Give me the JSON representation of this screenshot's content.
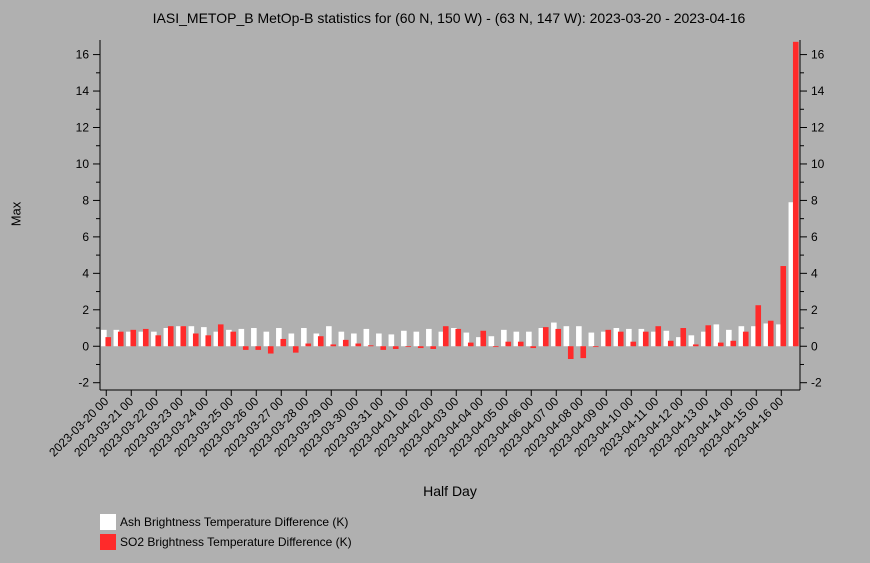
{
  "chart_data": {
    "type": "bar",
    "title": "IASI_METOP_B MetOp-B statistics for (60 N, 150 W) - (63 N, 147 W): 2023-03-20 - 2023-04-16",
    "xlabel": "Half Day",
    "ylabel": "Max",
    "ylim": [
      -2.4,
      16.8
    ],
    "yticks": [
      -2,
      0,
      2,
      4,
      6,
      8,
      10,
      12,
      14,
      16
    ],
    "grid": false,
    "legend_position": "bottom-left",
    "categories": [
      "2023-03-20 00",
      "2023-03-20 12",
      "2023-03-21 00",
      "2023-03-21 12",
      "2023-03-22 00",
      "2023-03-22 12",
      "2023-03-23 00",
      "2023-03-23 12",
      "2023-03-24 00",
      "2023-03-24 12",
      "2023-03-25 00",
      "2023-03-25 12",
      "2023-03-26 00",
      "2023-03-26 12",
      "2023-03-27 00",
      "2023-03-27 12",
      "2023-03-28 00",
      "2023-03-28 12",
      "2023-03-29 00",
      "2023-03-29 12",
      "2023-03-30 00",
      "2023-03-30 12",
      "2023-03-31 00",
      "2023-03-31 12",
      "2023-04-01 00",
      "2023-04-01 12",
      "2023-04-02 00",
      "2023-04-02 12",
      "2023-04-03 00",
      "2023-04-03 12",
      "2023-04-04 00",
      "2023-04-04 12",
      "2023-04-05 00",
      "2023-04-05 12",
      "2023-04-06 00",
      "2023-04-06 12",
      "2023-04-07 00",
      "2023-04-07 12",
      "2023-04-08 00",
      "2023-04-08 12",
      "2023-04-09 00",
      "2023-04-09 12",
      "2023-04-10 00",
      "2023-04-10 12",
      "2023-04-11 00",
      "2023-04-11 12",
      "2023-04-12 00",
      "2023-04-12 12",
      "2023-04-13 00",
      "2023-04-13 12",
      "2023-04-14 00",
      "2023-04-14 12",
      "2023-04-15 00",
      "2023-04-15 12",
      "2023-04-16 00",
      "2023-04-16 12"
    ],
    "tick_labels": [
      "2023-03-20 00",
      "2023-03-21 00",
      "2023-03-22 00",
      "2023-03-23 00",
      "2023-03-24 00",
      "2023-03-25 00",
      "2023-03-26 00",
      "2023-03-27 00",
      "2023-03-28 00",
      "2023-03-29 00",
      "2023-03-30 00",
      "2023-03-31 00",
      "2023-04-01 00",
      "2023-04-02 00",
      "2023-04-03 00",
      "2023-04-04 00",
      "2023-04-05 00",
      "2023-04-06 00",
      "2023-04-07 00",
      "2023-04-08 00",
      "2023-04-09 00",
      "2023-04-10 00",
      "2023-04-11 00",
      "2023-04-12 00",
      "2023-04-13 00",
      "2023-04-14 00",
      "2023-04-15 00",
      "2023-04-16 00"
    ],
    "series": [
      {
        "name": "Ash Brightness Temperature Difference (K)",
        "color": "#ffffff",
        "values": [
          0.9,
          0.9,
          0.8,
          0.8,
          0.8,
          1.0,
          1.1,
          1.1,
          1.05,
          0.8,
          0.9,
          0.95,
          1.0,
          0.8,
          1.0,
          0.7,
          1.0,
          0.7,
          1.1,
          0.8,
          0.7,
          0.95,
          0.7,
          0.65,
          0.85,
          0.8,
          0.95,
          0.8,
          1.0,
          0.75,
          0.5,
          0.55,
          0.9,
          0.8,
          0.8,
          1.0,
          1.3,
          1.1,
          1.1,
          0.75,
          0.8,
          1.0,
          0.95,
          0.95,
          0.8,
          0.85,
          0.5,
          0.6,
          0.8,
          1.2,
          0.9,
          1.1,
          1.1,
          1.25,
          1.2,
          7.9
        ]
      },
      {
        "name": "SO2 Brightness Temperature Difference (K)",
        "color": "#ff2a2a",
        "values": [
          0.5,
          0.8,
          0.9,
          0.95,
          0.6,
          1.1,
          1.1,
          0.7,
          0.6,
          1.2,
          0.8,
          -0.2,
          -0.2,
          -0.4,
          0.4,
          -0.35,
          0.15,
          0.55,
          0.1,
          0.35,
          0.15,
          0.05,
          -0.2,
          -0.15,
          0.0,
          -0.1,
          -0.15,
          1.1,
          0.95,
          0.2,
          0.85,
          0.0,
          0.25,
          0.25,
          -0.1,
          1.05,
          0.95,
          -0.7,
          -0.65,
          0.0,
          0.9,
          0.8,
          0.25,
          0.8,
          1.1,
          0.3,
          1.0,
          0.1,
          1.15,
          0.2,
          0.3,
          0.8,
          2.25,
          1.4,
          4.4,
          16.7
        ]
      }
    ]
  }
}
